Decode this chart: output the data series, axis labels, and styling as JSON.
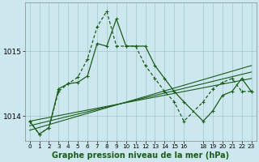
{
  "title": "Graphe pression niveau de la mer (hPa)",
  "bg_color": "#cce8ee",
  "line_color": "#1a5c1a",
  "grid_color": "#a0c8cc",
  "x_ticks": [
    0,
    1,
    2,
    3,
    4,
    5,
    6,
    7,
    8,
    9,
    10,
    11,
    12,
    13,
    14,
    15,
    16,
    18,
    19,
    20,
    21,
    22,
    23
  ],
  "ylim": [
    1013.62,
    1015.75
  ],
  "yticks": [
    1014,
    1015
  ],
  "ylabel_fontsize": 7,
  "xlabel_fontsize": 7,
  "series_jagged1": {
    "x": [
      0,
      1,
      2,
      3,
      4,
      5,
      6,
      7,
      8,
      9,
      10,
      11,
      12,
      13,
      14,
      15,
      16,
      18,
      19,
      20,
      21,
      22,
      23
    ],
    "y": [
      1013.92,
      1013.72,
      1013.82,
      1014.42,
      1014.5,
      1014.52,
      1014.62,
      1015.12,
      1015.08,
      1015.5,
      1015.08,
      1015.08,
      1015.08,
      1014.78,
      1014.58,
      1014.38,
      1014.22,
      1013.92,
      1014.08,
      1014.32,
      1014.38,
      1014.58,
      1014.38
    ]
  },
  "series_jagged2": {
    "x": [
      0,
      1,
      2,
      3,
      4,
      5,
      6,
      7,
      8,
      9,
      10,
      11,
      12,
      13,
      14,
      15,
      16,
      18,
      19,
      20,
      21,
      22,
      23
    ],
    "y": [
      1013.92,
      1013.72,
      1013.82,
      1014.38,
      1014.5,
      1014.6,
      1014.88,
      1015.38,
      1015.62,
      1015.08,
      1015.08,
      1015.08,
      1014.78,
      1014.58,
      1014.38,
      1014.22,
      1013.92,
      1014.22,
      1014.42,
      1014.52,
      1014.58,
      1014.38,
      1014.38
    ]
  },
  "series_linear1": {
    "x": [
      0,
      23
    ],
    "y": [
      1013.78,
      1014.78
    ]
  },
  "series_linear2": {
    "x": [
      0,
      23
    ],
    "y": [
      1013.85,
      1014.68
    ]
  },
  "series_linear3": {
    "x": [
      0,
      23
    ],
    "y": [
      1013.92,
      1014.58
    ]
  }
}
